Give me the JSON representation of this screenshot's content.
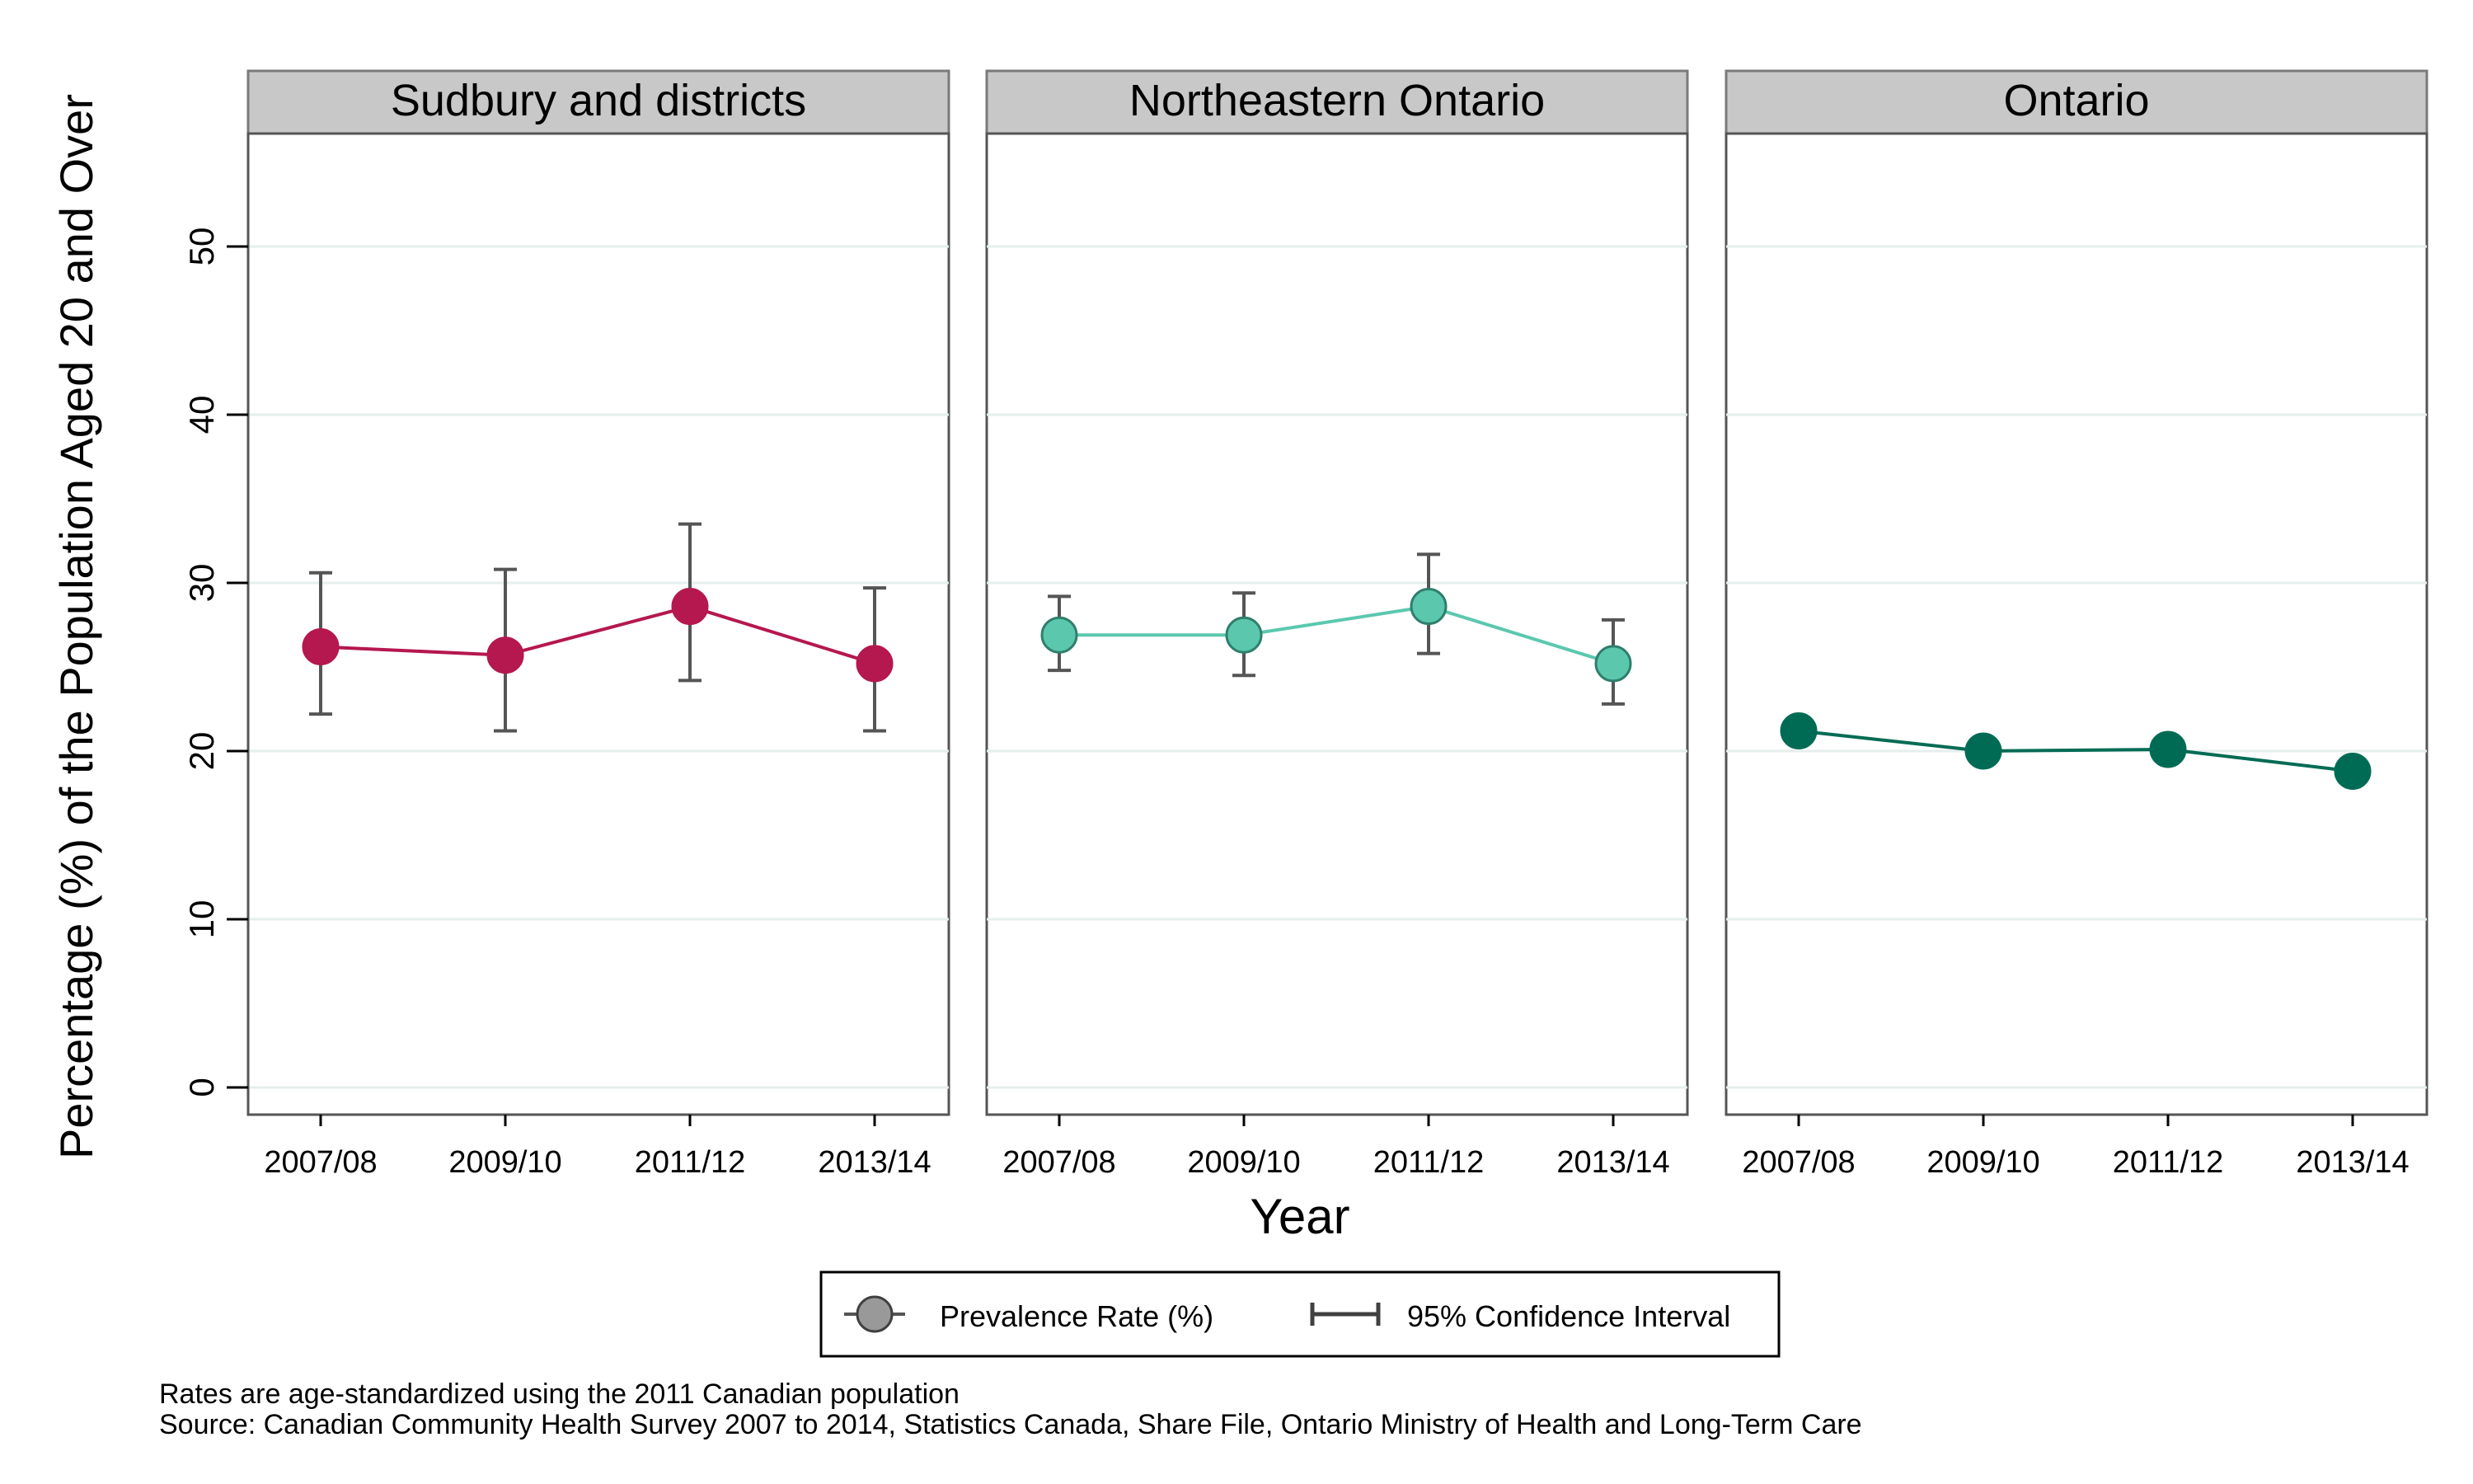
{
  "chart_data": {
    "type": "line",
    "ylabel": "Percentage (%) of the Population Aged 20 and Over",
    "xlabel": "Year",
    "categories": [
      "2007/08",
      "2009/10",
      "2011/12",
      "2013/14"
    ],
    "ylim": [
      0,
      55
    ],
    "yticks": [
      0,
      10,
      20,
      30,
      40,
      50
    ],
    "grid": true,
    "panels": [
      {
        "title": "Sudbury and districts",
        "color": "#b5174f",
        "values": [
          26.2,
          25.7,
          28.6,
          25.2
        ],
        "ci_lower": [
          22.2,
          21.2,
          24.2,
          21.2
        ],
        "ci_upper": [
          30.6,
          30.8,
          33.5,
          29.7
        ]
      },
      {
        "title": "Northeastern Ontario",
        "color": "#5bc8ae",
        "values": [
          26.9,
          26.9,
          28.6,
          25.2
        ],
        "ci_lower": [
          24.8,
          24.5,
          25.8,
          22.8
        ],
        "ci_upper": [
          29.2,
          29.4,
          31.7,
          27.8
        ]
      },
      {
        "title": "Ontario",
        "color": "#006b54",
        "values": [
          21.2,
          20.0,
          20.1,
          18.8
        ],
        "ci_lower": [
          20.7,
          19.5,
          19.6,
          18.3
        ],
        "ci_upper": [
          21.7,
          20.5,
          20.6,
          19.3
        ]
      }
    ],
    "legend": {
      "position": "bottom",
      "items": [
        {
          "label": "Prevalence Rate (%)",
          "symbol": "circle",
          "color": "#999999"
        },
        {
          "label": "95% Confidence Interval",
          "symbol": "error-bar",
          "color": "#404040"
        }
      ]
    },
    "notes": [
      "Rates are age-standardized using the 2011 Canadian population",
      "Source: Canadian Community Health Survey 2007 to 2014, Statistics Canada, Share File, Ontario Ministry of Health and Long-Term Care"
    ]
  }
}
